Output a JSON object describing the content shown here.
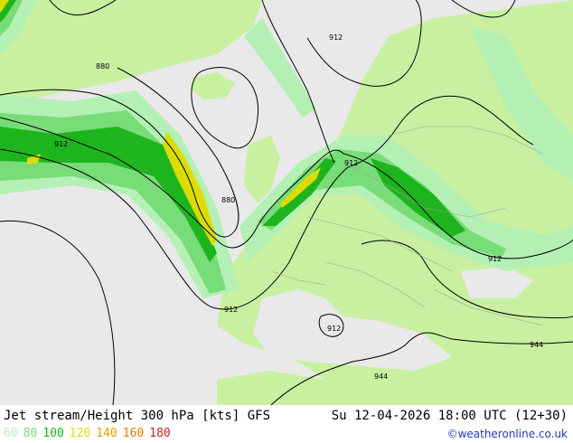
{
  "map": {
    "contour_labels": [
      "912",
      "880",
      "912",
      "880",
      "912",
      "912",
      "912",
      "912",
      "944",
      "944"
    ]
  },
  "footer": {
    "title": "Jet stream/Height 300 hPa [kts] GFS",
    "datetime": "Su 12-04-2026 18:00 UTC (12+30)",
    "legend": [
      {
        "label": "60",
        "color": "#b4f0b4"
      },
      {
        "label": "80",
        "color": "#78dc78"
      },
      {
        "label": "100",
        "color": "#1eb41e"
      },
      {
        "label": "120",
        "color": "#dcdc00"
      },
      {
        "label": "140",
        "color": "#e6a000"
      },
      {
        "label": "160",
        "color": "#e67800"
      },
      {
        "label": "180",
        "color": "#c81e1e"
      }
    ],
    "credit": "©weatheronline.co.uk",
    "credit_color": "#1e3cb4"
  }
}
